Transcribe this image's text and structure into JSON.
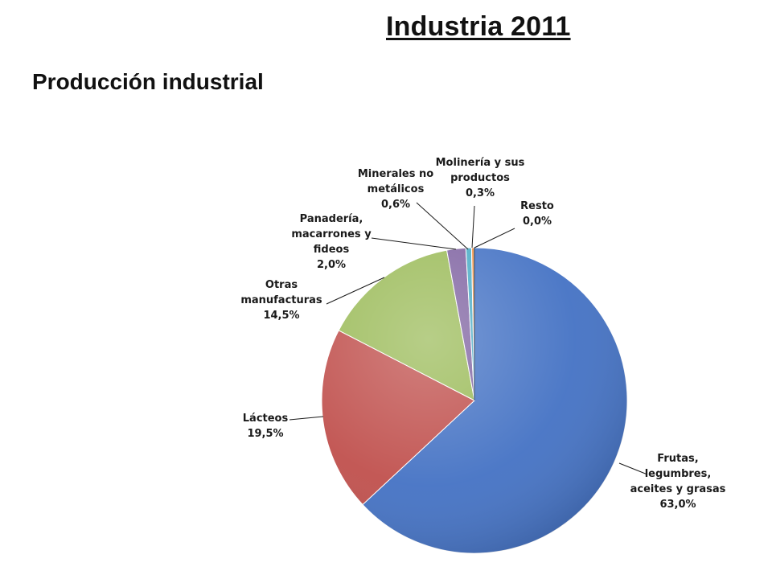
{
  "page": {
    "title": "Industria 2011",
    "subtitle": "Producción industrial"
  },
  "chart_data": {
    "type": "pie",
    "slices": [
      {
        "name": "Frutas, legumbres, aceites y grasas",
        "label_lines": [
          "Frutas,",
          "legumbres,",
          "aceites y grasas"
        ],
        "value": 63.0,
        "value_label": "63,0%",
        "color": "#4472C4"
      },
      {
        "name": "Lácteos",
        "label_lines": [
          "Lácteos"
        ],
        "value": 19.5,
        "value_label": "19,5%",
        "color": "#C0504D"
      },
      {
        "name": "Otras manufacturas",
        "label_lines": [
          "Otras",
          "manufacturas"
        ],
        "value": 14.5,
        "value_label": "14,5%",
        "color": "#9BBB59"
      },
      {
        "name": "Panadería, macarrones y fideos",
        "label_lines": [
          "Panadería,",
          "macarrones y",
          "fideos"
        ],
        "value": 2.0,
        "value_label": "2,0%",
        "color": "#8064A2"
      },
      {
        "name": "Minerales no metálicos",
        "label_lines": [
          "Minerales no",
          "metálicos"
        ],
        "value": 0.6,
        "value_label": "0,6%",
        "color": "#4BACC6"
      },
      {
        "name": "Molinería y sus productos",
        "label_lines": [
          "Molinería y sus",
          "productos"
        ],
        "value": 0.3,
        "value_label": "0,3%",
        "color": "#F79646"
      },
      {
        "name": "Resto",
        "label_lines": [
          "Resto"
        ],
        "value": 0.0,
        "value_label": "0,0%",
        "color": "#2C4D75"
      }
    ],
    "start_angle": "12 o'clock",
    "direction": "clockwise",
    "legend": "none",
    "data_labels": "outside with leader lines"
  }
}
